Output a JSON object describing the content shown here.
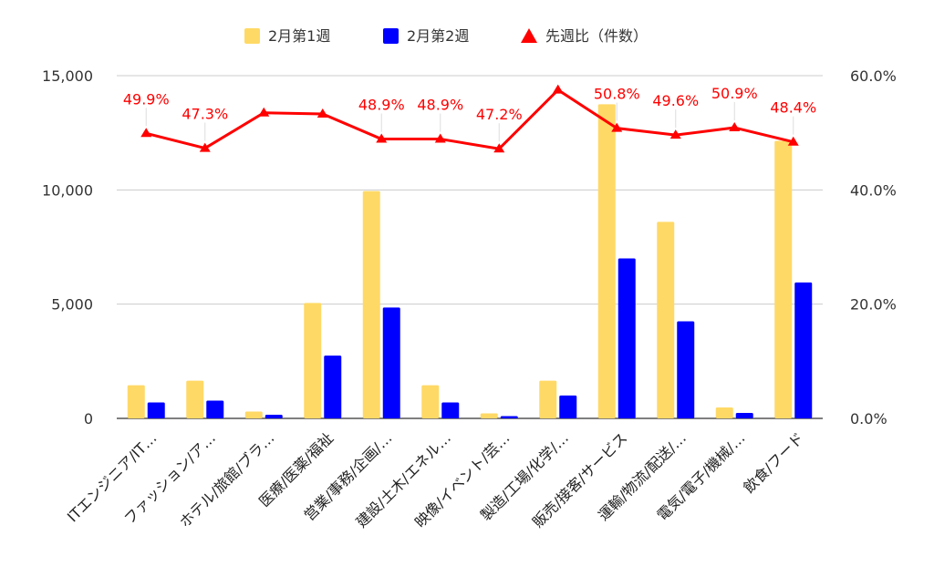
{
  "chart_data": {
    "type": "bar",
    "title": "",
    "xlabel": "",
    "ylabel": "",
    "categories": [
      "ITエンジニア/IT…",
      "ファッション/ア…",
      "ホテル/旅館/ブラ…",
      "医療/医薬/福祉",
      "営業/事務/企画/…",
      "建設/土木/エネル…",
      "映像/イベント/芸…",
      "製造/工場/化学/…",
      "販売/接客/サービス",
      "運輸/物流/配送/…",
      "電気/電子/機械/…",
      "飲食/フード"
    ],
    "series": [
      {
        "name": "2月第1週",
        "type": "bar",
        "axis": "left",
        "color": "#ffd966",
        "values": [
          1450,
          1650,
          300,
          5050,
          9950,
          1450,
          220,
          1650,
          13750,
          8600,
          480,
          12150
        ]
      },
      {
        "name": "2月第2週",
        "type": "bar",
        "axis": "left",
        "color": "#0000ff",
        "values": [
          700,
          780,
          160,
          2750,
          4850,
          700,
          100,
          1000,
          7000,
          4250,
          240,
          5950
        ]
      },
      {
        "name": "先週比（件数）",
        "type": "line",
        "axis": "right",
        "color": "#ff0000",
        "values": [
          49.9,
          47.3,
          53.5,
          53.3,
          48.9,
          48.9,
          47.2,
          57.5,
          50.8,
          49.6,
          50.9,
          48.4
        ],
        "labels": [
          "49.9%",
          "47.3%",
          "",
          "",
          "48.9%",
          "48.9%",
          "47.2%",
          "",
          "50.8%",
          "49.6%",
          "50.9%",
          "48.4%"
        ]
      }
    ],
    "y_left": {
      "min": 0,
      "max": 15000,
      "ticks": [
        0,
        5000,
        10000,
        15000
      ],
      "tick_labels": [
        "0",
        "5,000",
        "10,000",
        "15,000"
      ]
    },
    "y_right": {
      "min": 0,
      "max": 60,
      "ticks": [
        0,
        20,
        40,
        60
      ],
      "tick_labels": [
        "0.0%",
        "20.0%",
        "40.0%",
        "60.0%"
      ]
    },
    "grid": true,
    "legend_position": "top"
  }
}
